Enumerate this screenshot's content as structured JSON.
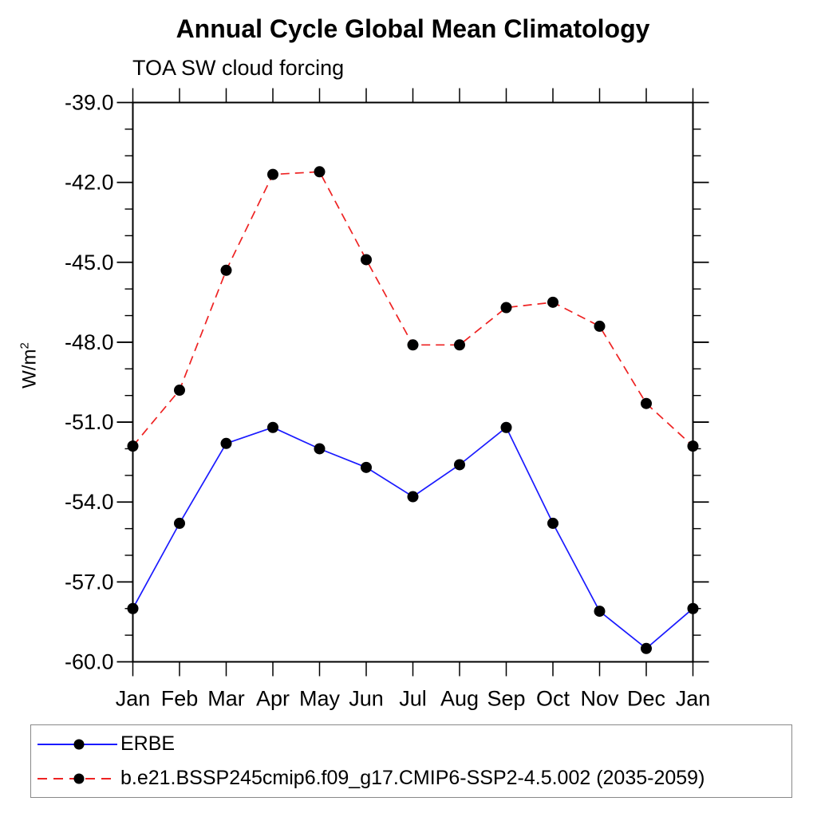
{
  "title": "Annual Cycle Global Mean Climatology",
  "subtitle": "TOA SW cloud forcing",
  "y_axis": {
    "label_base": "W/m",
    "label_exponent": "2"
  },
  "chart_data": {
    "type": "line",
    "categories": [
      "Jan",
      "Feb",
      "Mar",
      "Apr",
      "May",
      "Jun",
      "Jul",
      "Aug",
      "Sep",
      "Oct",
      "Nov",
      "Dec",
      "Jan"
    ],
    "series": [
      {
        "name": "ERBE",
        "color": "#1a1aff",
        "line_style": "solid",
        "marker": "filled-circle",
        "marker_color": "#000000",
        "values": [
          -58.0,
          -54.8,
          -51.8,
          -51.2,
          -52.0,
          -52.7,
          -53.8,
          -52.6,
          -51.2,
          -54.8,
          -58.1,
          -59.5,
          -58.0
        ]
      },
      {
        "name": "b.e21.BSSP245cmip6.f09_g17.CMIP6-SSP2-4.5.002 (2035-2059)",
        "color": "#ee2222",
        "line_style": "dashed",
        "marker": "filled-circle",
        "marker_color": "#000000",
        "values": [
          -51.9,
          -49.8,
          -45.3,
          -41.7,
          -41.6,
          -44.9,
          -48.1,
          -48.1,
          -46.7,
          -46.5,
          -47.4,
          -50.3,
          -51.9
        ]
      }
    ],
    "ylim": [
      -60.0,
      -39.0
    ],
    "ytick_major_step": 3.0,
    "ytick_minor_step": 1.0,
    "ytick_labels": [
      "-39.0",
      "-42.0",
      "-45.0",
      "-48.0",
      "-51.0",
      "-54.0",
      "-57.0",
      "-60.0"
    ],
    "xlabel": "",
    "ylabel": "W/m2",
    "grid": false,
    "legend_position": "bottom",
    "axis_color": "#000000"
  }
}
